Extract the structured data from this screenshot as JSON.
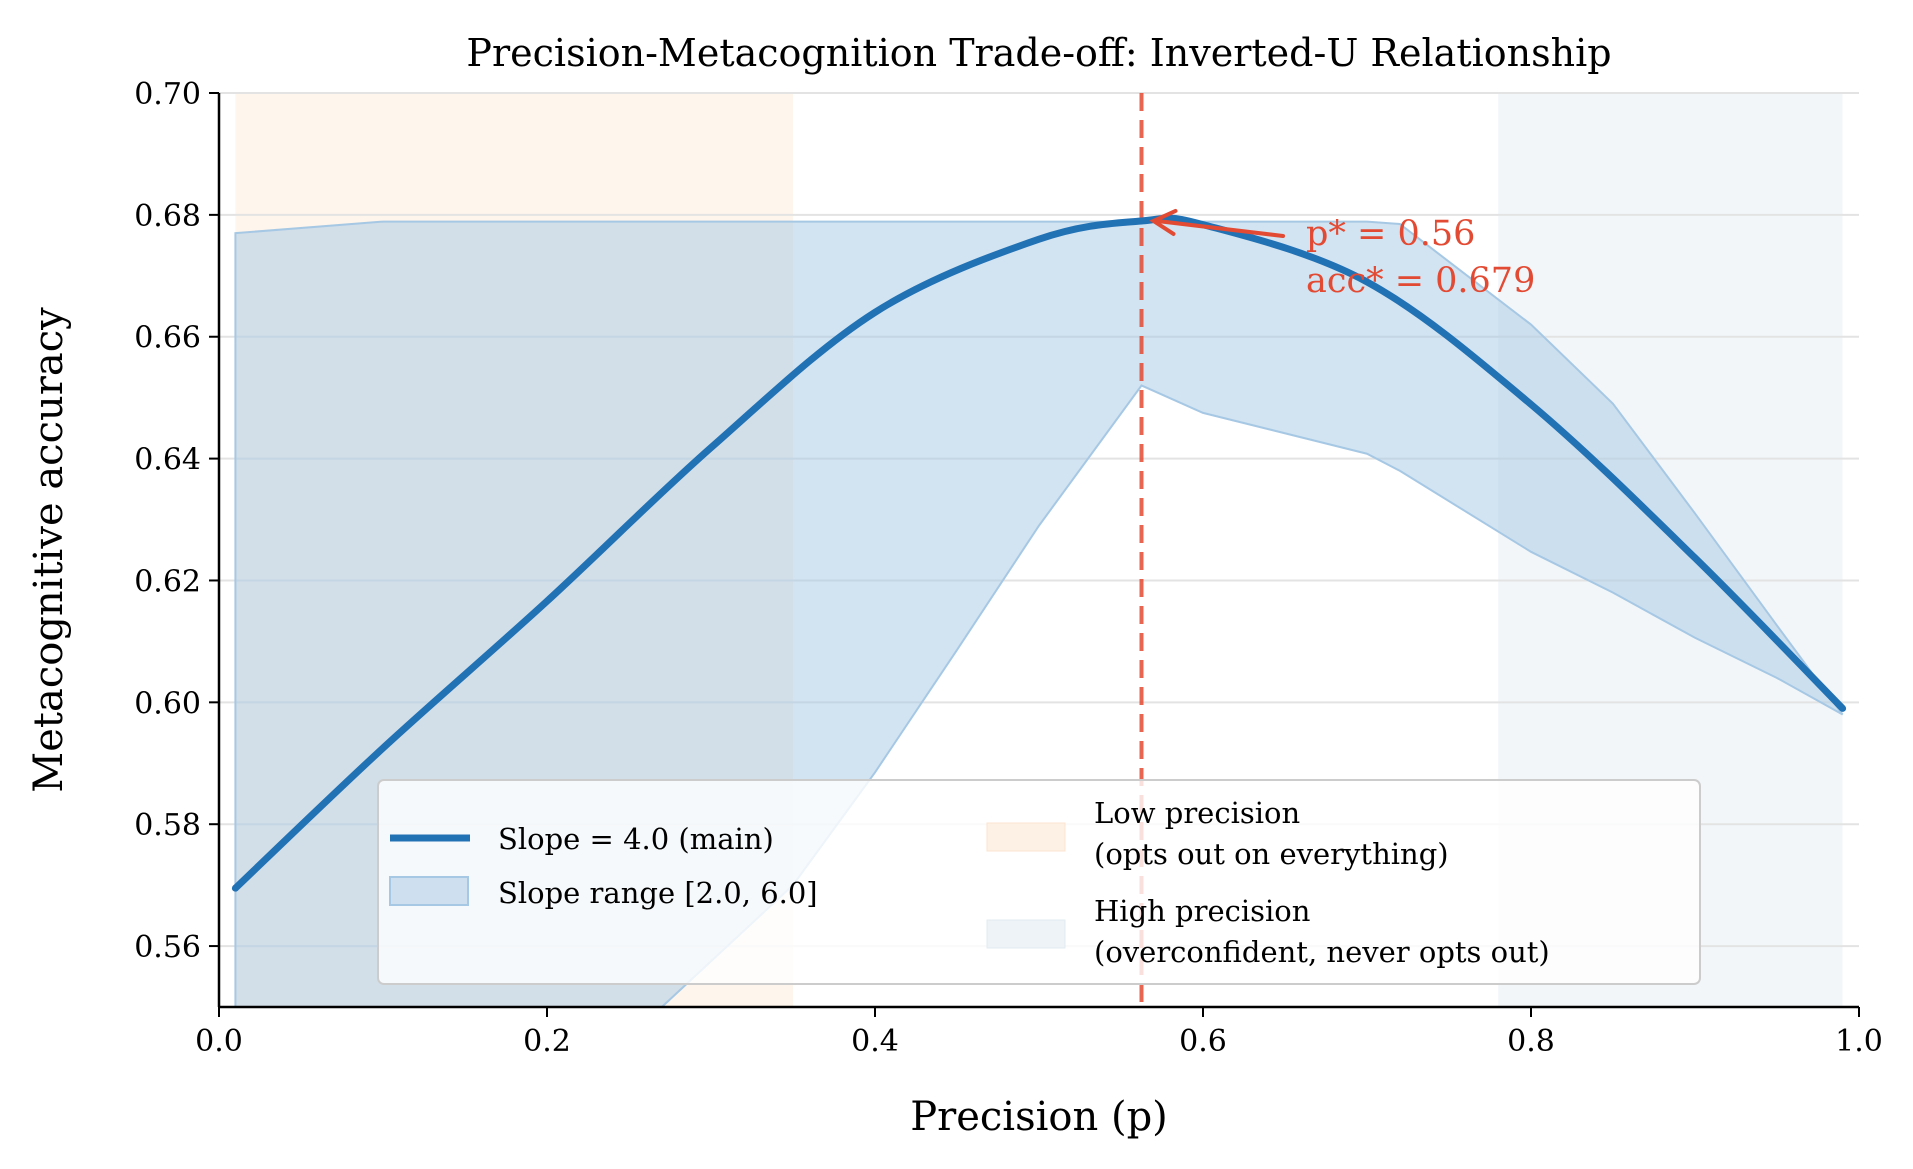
{
  "chart_data": {
    "type": "line",
    "title": "Precision-Metacognition Trade-off: Inverted-U Relationship",
    "xlabel": "Precision (p)",
    "ylabel": "Metacognitive accuracy",
    "xlim": [
      0.0,
      1.0
    ],
    "ylim": [
      0.55,
      0.7
    ],
    "xticks": [
      "0.0",
      "0.2",
      "0.4",
      "0.6",
      "0.8",
      "1.0"
    ],
    "yticks": [
      "0.56",
      "0.58",
      "0.60",
      "0.62",
      "0.64",
      "0.66",
      "0.68",
      "0.70"
    ],
    "grid": "horizontal",
    "legend_placement": "lower-center",
    "series": [
      {
        "name": "Slope = 4.0 (main)",
        "color": "#2171b5",
        "x": [
          0.01,
          0.1,
          0.2,
          0.3,
          0.4,
          0.5,
          0.5625,
          0.6,
          0.7,
          0.8,
          0.9,
          0.99
        ],
        "y": [
          0.5695,
          0.5925,
          0.6166,
          0.6418,
          0.664,
          0.676,
          0.679,
          0.6784,
          0.669,
          0.6489,
          0.6237,
          0.599
        ]
      }
    ],
    "band": {
      "name": "Slope range [2.0, 6.0]",
      "color": "#a6c8e4",
      "x": [
        0.01,
        0.1,
        0.2,
        0.27,
        0.35,
        0.4,
        0.45,
        0.5,
        0.5625,
        0.6,
        0.7,
        0.72,
        0.8,
        0.85,
        0.9,
        0.95,
        0.99
      ],
      "upper": [
        0.677,
        0.6789,
        0.6789,
        0.6789,
        0.6789,
        0.6789,
        0.6789,
        0.6789,
        0.6789,
        0.6789,
        0.6789,
        0.6785,
        0.662,
        0.649,
        0.631,
        0.6126,
        0.598
      ],
      "lower": [
        0.45,
        0.49,
        0.53,
        0.55,
        0.57,
        0.5885,
        0.6086,
        0.629,
        0.652,
        0.6475,
        0.6408,
        0.638,
        0.6247,
        0.618,
        0.6106,
        0.604,
        0.598
      ]
    },
    "regions": [
      {
        "name": "Low precision\n(opts out on everything)",
        "line1": "Low precision",
        "line2": "(opts out on everything)",
        "x_range": [
          0.01,
          0.35
        ],
        "color": "#fdf1e6"
      },
      {
        "name": "High precision\n(overconfident, never opts out)",
        "line1": "High precision",
        "line2": "(overconfident, never opts out)",
        "x_range": [
          0.78,
          0.99
        ],
        "color": "#edf3f7"
      }
    ],
    "optimum": {
      "x": 0.5625,
      "y": 0.679,
      "color": "#e34a33",
      "label_line1": "p* = 0.56",
      "label_line2": "acc* = 0.679"
    }
  }
}
